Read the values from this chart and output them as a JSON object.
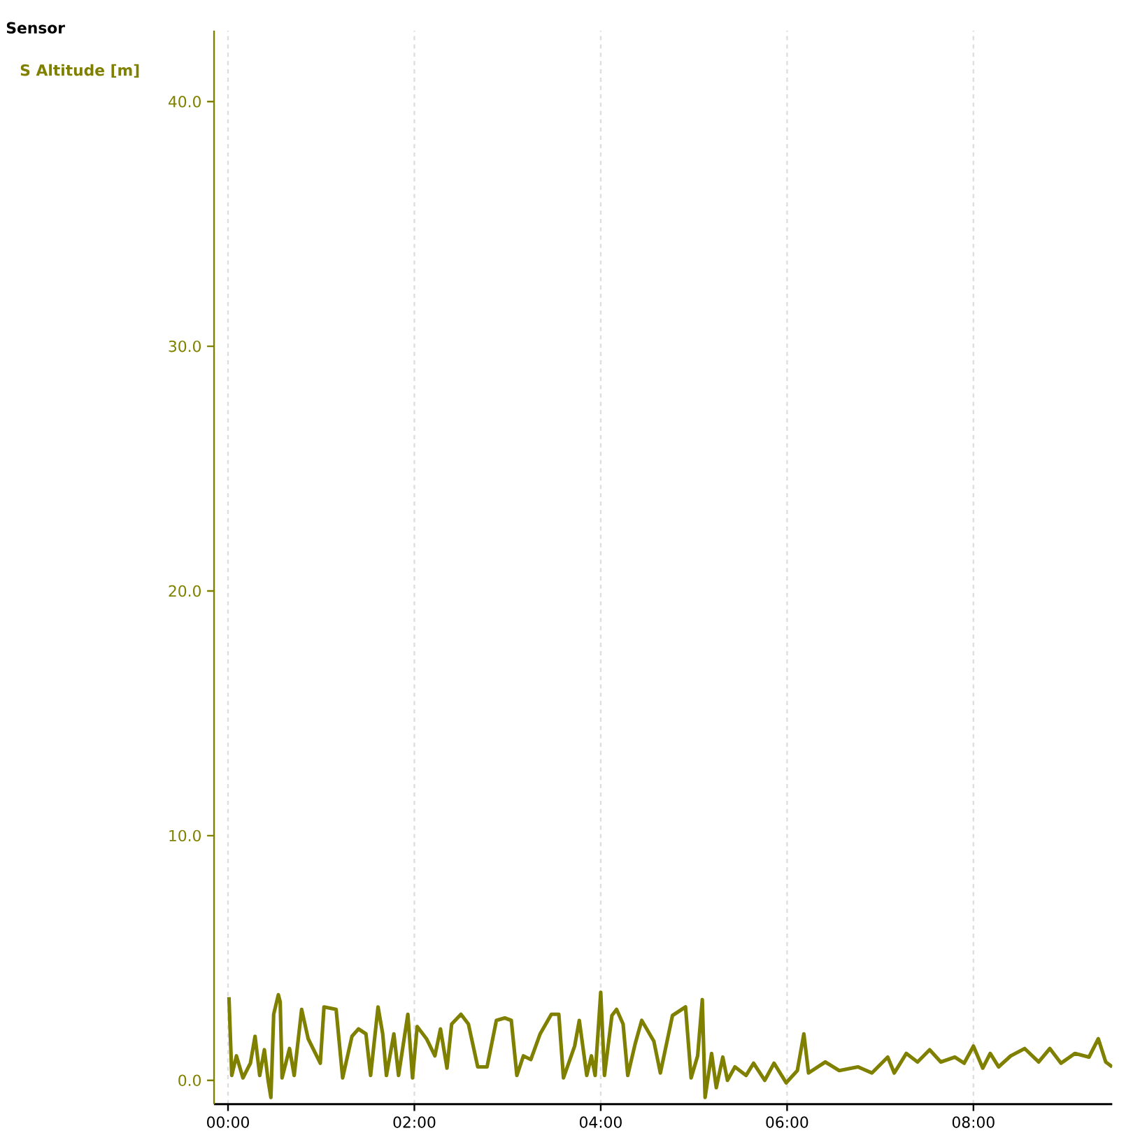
{
  "chart_data": {
    "type": "line",
    "legend_title": "Sensor",
    "legend": "top left",
    "grid": "x",
    "line_style": "solid",
    "xlim": [
      -0.15,
      9.49
    ],
    "ylim": [
      -0.97,
      42.9
    ],
    "xticks": [
      {
        "value": 0,
        "label": "00:00"
      },
      {
        "value": 2,
        "label": "02:00"
      },
      {
        "value": 4,
        "label": "04:00"
      },
      {
        "value": 6,
        "label": "06:00"
      },
      {
        "value": 8,
        "label": "08:00"
      }
    ],
    "yticks": [
      {
        "value": 0,
        "label": "0.0"
      },
      {
        "value": 10,
        "label": "10.0"
      },
      {
        "value": 20,
        "label": "20.0"
      },
      {
        "value": 30,
        "label": "30.0"
      },
      {
        "value": 40,
        "label": "40.0"
      }
    ],
    "series": [
      {
        "name": "S Altitude [m]",
        "color": "#808000",
        "x": [
          0.01,
          0.04,
          0.09,
          0.16,
          0.24,
          0.29,
          0.34,
          0.39,
          0.43,
          0.46,
          0.49,
          0.54,
          0.56,
          0.58,
          0.66,
          0.71,
          0.79,
          0.86,
          0.99,
          1.03,
          1.16,
          1.23,
          1.33,
          1.4,
          1.48,
          1.53,
          1.61,
          1.66,
          1.7,
          1.78,
          1.83,
          1.93,
          1.98,
          2.03,
          2.13,
          2.22,
          2.28,
          2.35,
          2.4,
          2.5,
          2.58,
          2.68,
          2.78,
          2.88,
          2.97,
          3.04,
          3.1,
          3.17,
          3.25,
          3.35,
          3.47,
          3.55,
          3.6,
          3.72,
          3.77,
          3.85,
          3.9,
          3.94,
          4.0,
          4.04,
          4.12,
          4.17,
          4.24,
          4.29,
          4.37,
          4.44,
          4.57,
          4.64,
          4.77,
          4.91,
          4.97,
          5.04,
          5.09,
          5.12,
          5.19,
          5.24,
          5.31,
          5.36,
          5.44,
          5.56,
          5.64,
          5.76,
          5.86,
          5.99,
          6.11,
          6.18,
          6.23,
          6.41,
          6.56,
          6.76,
          6.91,
          7.08,
          7.15,
          7.28,
          7.4,
          7.53,
          7.65,
          7.8,
          7.9,
          8.0,
          8.1,
          8.18,
          8.27,
          8.4,
          8.55,
          8.7,
          8.82,
          8.94,
          9.09,
          9.24,
          9.34,
          9.42,
          9.49
        ],
        "values": [
          3.4,
          0.2,
          1.0,
          0.1,
          0.7,
          1.8,
          0.2,
          1.25,
          0.0,
          -0.7,
          2.7,
          3.5,
          3.2,
          0.1,
          1.3,
          0.2,
          2.9,
          1.7,
          0.7,
          3.0,
          2.9,
          0.1,
          1.8,
          2.1,
          1.9,
          0.2,
          3.0,
          1.9,
          0.2,
          1.9,
          0.2,
          2.7,
          0.1,
          2.2,
          1.7,
          1.0,
          2.1,
          0.5,
          2.3,
          2.7,
          2.3,
          0.55,
          0.55,
          2.45,
          2.55,
          2.45,
          0.2,
          1.0,
          0.85,
          1.9,
          2.7,
          2.7,
          0.1,
          1.4,
          2.45,
          0.2,
          1.0,
          0.2,
          3.6,
          0.2,
          2.65,
          2.9,
          2.3,
          0.2,
          1.5,
          2.45,
          1.6,
          0.3,
          2.65,
          3.0,
          0.1,
          1.0,
          3.3,
          -0.7,
          1.1,
          -0.3,
          0.95,
          0.0,
          0.55,
          0.2,
          0.7,
          0.0,
          0.7,
          -0.1,
          0.4,
          1.9,
          0.3,
          0.75,
          0.4,
          0.55,
          0.3,
          0.95,
          0.3,
          1.1,
          0.75,
          1.25,
          0.75,
          0.95,
          0.7,
          1.4,
          0.5,
          1.1,
          0.55,
          1.0,
          1.3,
          0.75,
          1.3,
          0.7,
          1.1,
          0.95,
          1.7,
          0.75,
          0.55
        ]
      }
    ]
  }
}
